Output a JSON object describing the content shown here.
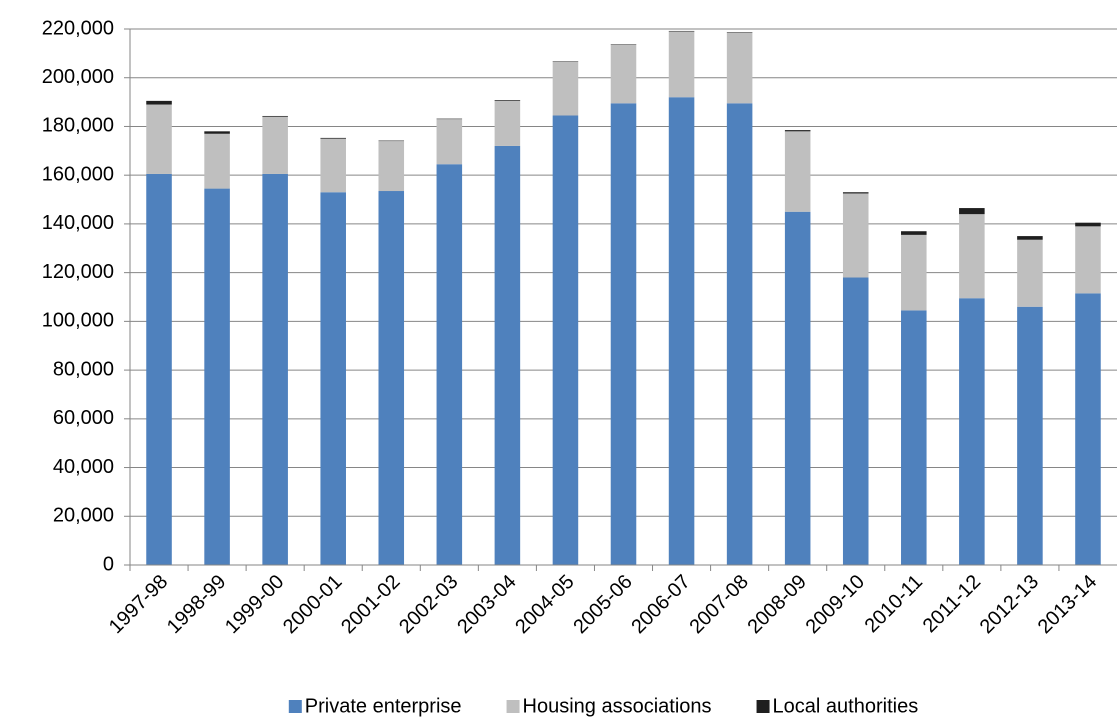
{
  "chart_data": {
    "type": "bar",
    "stacked": true,
    "categories": [
      "1997-98",
      "1998-99",
      "1999-00",
      "2000-01",
      "2001-02",
      "2002-03",
      "2003-04",
      "2004-05",
      "2005-06",
      "2006-07",
      "2007-08",
      "2008-09",
      "2009-10",
      "2010-11",
      "2011-12",
      "2012-13",
      "2013-14"
    ],
    "series": [
      {
        "name": "Private enterprise",
        "color": "#4f81bd",
        "values": [
          160500,
          154500,
          160500,
          153000,
          153500,
          164500,
          172000,
          184500,
          189500,
          192000,
          189500,
          145000,
          118000,
          104500,
          109500,
          106000,
          111500
        ]
      },
      {
        "name": "Housing associations",
        "color": "#bfbfbf",
        "values": [
          28500,
          22500,
          23500,
          22000,
          20500,
          18500,
          18500,
          22000,
          24000,
          27000,
          29000,
          33000,
          34500,
          31000,
          34500,
          27500,
          27500
        ]
      },
      {
        "name": "Local authorities",
        "color": "#1f1f1f",
        "values": [
          1500,
          1000,
          300,
          300,
          200,
          200,
          300,
          200,
          200,
          200,
          200,
          500,
          500,
          1500,
          2500,
          1500,
          1500
        ]
      }
    ],
    "ylim": [
      0,
      220000
    ],
    "yticks": [
      0,
      {
        "value": 20000,
        "label": "20,000"
      },
      {
        "value": 40000,
        "label": "40,000"
      },
      {
        "value": 60000,
        "label": "60,000"
      },
      {
        "value": 80000,
        "label": "80,000"
      },
      {
        "value": 100000,
        "label": "100,000"
      },
      {
        "value": 120000,
        "label": "120,000"
      },
      {
        "value": 140000,
        "label": "140,000"
      },
      {
        "value": 160000,
        "label": "160,000"
      },
      {
        "value": 180000,
        "label": "180,000"
      },
      {
        "value": 200000,
        "label": "200,000"
      },
      {
        "value": 220000,
        "label": "220,000"
      }
    ],
    "grid": true,
    "legend": "bottom"
  }
}
